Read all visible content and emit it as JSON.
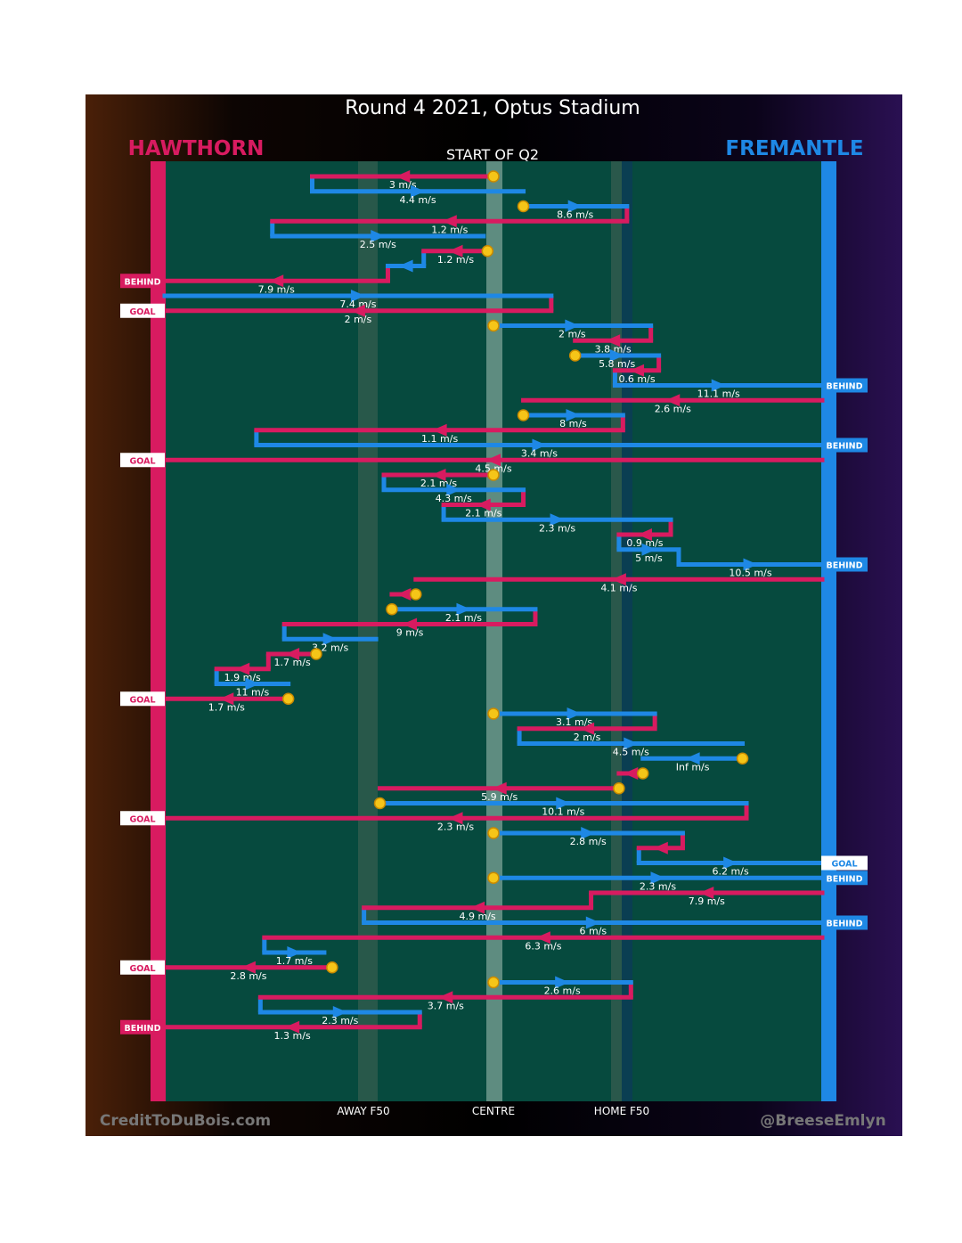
{
  "chart_data": {
    "type": "chain-flow",
    "title": "Round 4 2021, Optus Stadium",
    "subtitle": "START OF Q2",
    "teams": {
      "left": {
        "name": "HAWTHORN",
        "color": "#d81b60"
      },
      "right": {
        "name": "FREMANTLE",
        "color": "#1e88e5"
      }
    },
    "axis_labels": [
      "AWAY F50",
      "CENTRE",
      "HOME F50"
    ],
    "field_scale": {
      "left_goal": 0,
      "away_f50": 50,
      "centre": 82.5,
      "home_f50": 115,
      "right_goal": 165
    },
    "footer": {
      "left": "CreditToDuBois.com",
      "right": "@BreeseEmlyn"
    },
    "segments": [
      {
        "team": "H",
        "from": 82.5,
        "to": 37,
        "speed": "3 m/s",
        "start": "stoppage"
      },
      {
        "team": "F",
        "from": 37,
        "to": 90,
        "speed": "4.4 m/s"
      },
      {
        "team": "F",
        "from": 90,
        "to": 116,
        "speed": "8.6 m/s",
        "start": "stoppage"
      },
      {
        "team": "H",
        "from": 116,
        "to": 27,
        "speed": "1.2 m/s"
      },
      {
        "team": "F",
        "from": 27,
        "to": 80,
        "speed": "2.5 m/s"
      },
      {
        "team": "H",
        "from": 81,
        "to": 65,
        "speed": "1.2 m/s",
        "start": "stoppage"
      },
      {
        "team": "F",
        "from": 65,
        "to": 56,
        "speed": ""
      },
      {
        "team": "H",
        "from": 56,
        "to": 0,
        "speed": "7.9 m/s",
        "end": "BEHIND"
      },
      {
        "team": "F",
        "from": 0,
        "to": 97,
        "speed": "7.4 m/s"
      },
      {
        "team": "H",
        "from": 97,
        "to": 0,
        "speed": "2 m/s",
        "end": "GOAL"
      },
      {
        "team": "F",
        "from": 82.5,
        "to": 122,
        "speed": "2 m/s",
        "start": "stoppage"
      },
      {
        "team": "H",
        "from": 122,
        "to": 103,
        "speed": "3.8 m/s"
      },
      {
        "team": "F",
        "from": 103,
        "to": 124,
        "speed": "5.8 m/s",
        "start": "stoppage"
      },
      {
        "team": "H",
        "from": 124,
        "to": 113,
        "speed": "0.6 m/s"
      },
      {
        "team": "F",
        "from": 113,
        "to": 165,
        "speed": "11.1 m/s",
        "end": "BEHIND"
      },
      {
        "team": "H",
        "from": 165,
        "to": 90,
        "speed": "2.6 m/s"
      },
      {
        "team": "F",
        "from": 90,
        "to": 115,
        "speed": "8 m/s",
        "start": "stoppage"
      },
      {
        "team": "H",
        "from": 115,
        "to": 23,
        "speed": "1.1 m/s"
      },
      {
        "team": "F",
        "from": 23,
        "to": 165,
        "speed": "3.4 m/s",
        "end": "BEHIND"
      },
      {
        "team": "H",
        "from": 165,
        "to": 0,
        "speed": "4.5 m/s",
        "end": "GOAL"
      },
      {
        "team": "H",
        "from": 82.5,
        "to": 55,
        "speed": "2.1 m/s",
        "start": "stoppage"
      },
      {
        "team": "F",
        "from": 55,
        "to": 90,
        "speed": "4.3 m/s"
      },
      {
        "team": "H",
        "from": 90,
        "to": 70,
        "speed": "2.1 m/s"
      },
      {
        "team": "F",
        "from": 70,
        "to": 127,
        "speed": "2.3 m/s"
      },
      {
        "team": "H",
        "from": 127,
        "to": 114,
        "speed": "0.9 m/s"
      },
      {
        "team": "F",
        "from": 114,
        "to": 129,
        "speed": "5 m/s"
      },
      {
        "team": "F",
        "from": 129,
        "to": 165,
        "speed": "10.5 m/s",
        "end": "BEHIND"
      },
      {
        "team": "H",
        "from": 165,
        "to": 63,
        "speed": "4.1 m/s"
      },
      {
        "team": "H",
        "from": 63,
        "to": 57,
        "speed": "",
        "start": "stoppage"
      },
      {
        "team": "F",
        "from": 57,
        "to": 93,
        "speed": "2.1 m/s",
        "start": "stoppage"
      },
      {
        "team": "H",
        "from": 93,
        "to": 30,
        "speed": "9 m/s"
      },
      {
        "team": "F",
        "from": 30,
        "to": 53,
        "speed": "3.2 m/s"
      },
      {
        "team": "H",
        "from": 38,
        "to": 26,
        "speed": "1.7 m/s",
        "start": "stoppage"
      },
      {
        "team": "H",
        "from": 26,
        "to": 13,
        "speed": "1.9 m/s"
      },
      {
        "team": "F",
        "from": 13,
        "to": 31,
        "speed": "11 m/s"
      },
      {
        "team": "H",
        "from": 31,
        "to": 0,
        "speed": "1.7 m/s",
        "end": "GOAL",
        "start": "stoppage"
      },
      {
        "team": "F",
        "from": 82.5,
        "to": 123,
        "speed": "3.1 m/s",
        "start": "stoppage"
      },
      {
        "team": "H",
        "from": 123,
        "to": 89,
        "speed": "2 m/s"
      },
      {
        "team": "F",
        "from": 89,
        "to": 145,
        "speed": "4.5 m/s"
      },
      {
        "team": "F",
        "from": 145,
        "to": 120,
        "speed": "Inf m/s",
        "start": "stoppage"
      },
      {
        "team": "H",
        "from": 120,
        "to": 114,
        "speed": "",
        "start": "stoppage"
      },
      {
        "team": "H",
        "from": 114,
        "to": 54,
        "speed": "5.9 m/s",
        "start": "stoppage"
      },
      {
        "team": "F",
        "from": 54,
        "to": 146,
        "speed": "10.1 m/s",
        "start": "stoppage"
      },
      {
        "team": "H",
        "from": 146,
        "to": 0,
        "speed": "2.3 m/s",
        "end": "GOAL"
      },
      {
        "team": "F",
        "from": 82.5,
        "to": 130,
        "speed": "2.8 m/s",
        "start": "stoppage"
      },
      {
        "team": "H",
        "from": 130,
        "to": 119,
        "speed": ""
      },
      {
        "team": "F",
        "from": 119,
        "to": 165,
        "speed": "6.2 m/s",
        "end": "GOAL"
      },
      {
        "team": "F",
        "from": 82.5,
        "to": 165,
        "speed": "2.3 m/s",
        "end": "BEHIND",
        "start": "stoppage"
      },
      {
        "team": "H",
        "from": 165,
        "to": 107,
        "speed": "7.9 m/s"
      },
      {
        "team": "H",
        "from": 107,
        "to": 50,
        "speed": "4.9 m/s"
      },
      {
        "team": "F",
        "from": 50,
        "to": 165,
        "speed": "6 m/s",
        "end": "BEHIND"
      },
      {
        "team": "H",
        "from": 165,
        "to": 25,
        "speed": "6.3 m/s"
      },
      {
        "team": "F",
        "from": 25,
        "to": 40,
        "speed": "1.7 m/s"
      },
      {
        "team": "H",
        "from": 42,
        "to": 0,
        "speed": "2.8 m/s",
        "end": "GOAL",
        "start": "stoppage"
      },
      {
        "team": "F",
        "from": 82.5,
        "to": 117,
        "speed": "2.6 m/s",
        "start": "stoppage"
      },
      {
        "team": "H",
        "from": 117,
        "to": 24,
        "speed": "3.7 m/s"
      },
      {
        "team": "F",
        "from": 24,
        "to": 64,
        "speed": "2.3 m/s"
      },
      {
        "team": "H",
        "from": 64,
        "to": 0,
        "speed": "1.3 m/s",
        "end": "BEHIND"
      }
    ]
  }
}
